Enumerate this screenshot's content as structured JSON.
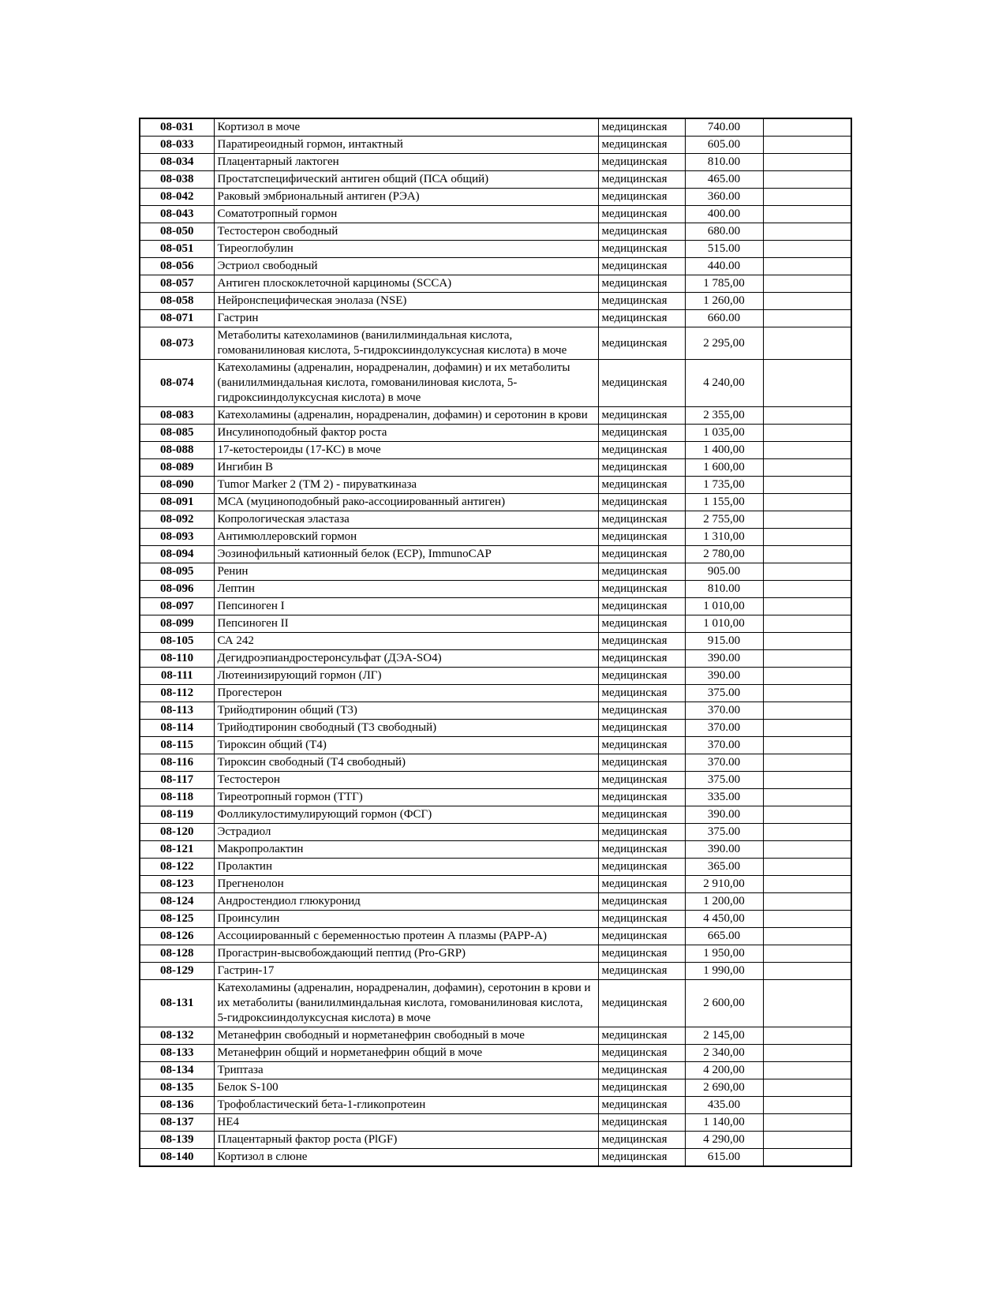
{
  "colors": {
    "background": "#ffffff",
    "text": "#000000",
    "border": "#000000"
  },
  "table": {
    "rows": [
      {
        "code": "08-031",
        "name": "Кортизол в моче",
        "category": "медицинская",
        "price": "740.00",
        "note": ""
      },
      {
        "code": "08-033",
        "name": "Паратиреоидный гормон, интактный",
        "category": "медицинская",
        "price": "605.00",
        "note": ""
      },
      {
        "code": "08-034",
        "name": "Плацентарный лактоген",
        "category": "медицинская",
        "price": "810.00",
        "note": ""
      },
      {
        "code": "08-038",
        "name": "Простатспецифический антиген общий (ПСА общий)",
        "category": "медицинская",
        "price": "465.00",
        "note": ""
      },
      {
        "code": "08-042",
        "name": "Раковый эмбриональный антиген (РЭА)",
        "category": "медицинская",
        "price": "360.00",
        "note": ""
      },
      {
        "code": "08-043",
        "name": "Соматотропный гормон",
        "category": "медицинская",
        "price": "400.00",
        "note": ""
      },
      {
        "code": "08-050",
        "name": "Тестостерон свободный",
        "category": "медицинская",
        "price": "680.00",
        "note": ""
      },
      {
        "code": "08-051",
        "name": "Тиреоглобулин",
        "category": "медицинская",
        "price": "515.00",
        "note": ""
      },
      {
        "code": "08-056",
        "name": "Эстриол свободный",
        "category": "медицинская",
        "price": "440.00",
        "note": ""
      },
      {
        "code": "08-057",
        "name": "Антиген плоскоклеточной карциномы (SCCA)",
        "category": "медицинская",
        "price": "1 785,00",
        "note": ""
      },
      {
        "code": "08-058",
        "name": "Нейронспецифическая энолаза (NSE)",
        "category": "медицинская",
        "price": "1 260,00",
        "note": ""
      },
      {
        "code": "08-071",
        "name": "Гастрин",
        "category": "медицинская",
        "price": "660.00",
        "note": ""
      },
      {
        "code": "08-073",
        "name": "Метаболиты катехоламинов (ванилилминдальная кислота, гомованилиновая кислота, 5-гидроксииндолуксусная кислота) в моче",
        "category": "медицинская",
        "price": "2 295,00",
        "note": ""
      },
      {
        "code": "08-074",
        "name": "Катехоламины (адреналин, норадреналин, дофамин) и их метаболиты (ванилилминдальная кислота, гомованилиновая кислота, 5-гидроксииндолуксусная кислота) в моче",
        "category": "медицинская",
        "price": "4 240,00",
        "note": ""
      },
      {
        "code": "08-083",
        "name": "Катехоламины (адреналин, норадреналин, дофамин) и серотонин в крови",
        "category": "медицинская",
        "price": "2 355,00",
        "note": ""
      },
      {
        "code": "08-085",
        "name": "Инсулиноподобный фактор роста",
        "category": "медицинская",
        "price": "1 035,00",
        "note": ""
      },
      {
        "code": "08-088",
        "name": "17-кетостероиды (17-КС) в моче",
        "category": "медицинская",
        "price": "1 400,00",
        "note": ""
      },
      {
        "code": "08-089",
        "name": "Ингибин В",
        "category": "медицинская",
        "price": "1 600,00",
        "note": ""
      },
      {
        "code": "08-090",
        "name": "Tumor Marker 2 (TM 2) - пируваткиназа",
        "category": "медицинская",
        "price": "1 735,00",
        "note": ""
      },
      {
        "code": "08-091",
        "name": "МСА (муциноподобный рако-ассоциированный антиген)",
        "category": "медицинская",
        "price": "1 155,00",
        "note": ""
      },
      {
        "code": "08-092",
        "name": "Копрологическая эластаза",
        "category": "медицинская",
        "price": "2 755,00",
        "note": ""
      },
      {
        "code": "08-093",
        "name": "Антимюллеровский гормон",
        "category": "медицинская",
        "price": "1 310,00",
        "note": ""
      },
      {
        "code": "08-094",
        "name": "Эозинофильный катионный белок (ECP), ImmunoCAP",
        "category": "медицинская",
        "price": "2 780,00",
        "note": ""
      },
      {
        "code": "08-095",
        "name": "Ренин",
        "category": "медицинская",
        "price": "905.00",
        "note": ""
      },
      {
        "code": "08-096",
        "name": "Лептин",
        "category": "медицинская",
        "price": "810.00",
        "note": ""
      },
      {
        "code": "08-097",
        "name": "Пепсиноген I",
        "category": "медицинская",
        "price": "1 010,00",
        "note": ""
      },
      {
        "code": "08-099",
        "name": "Пепсиноген II",
        "category": "медицинская",
        "price": "1 010,00",
        "note": ""
      },
      {
        "code": "08-105",
        "name": "СА 242",
        "category": "медицинская",
        "price": "915.00",
        "note": ""
      },
      {
        "code": "08-110",
        "name": "Дегидроэпиандростеронсульфат (ДЭА-SO4)",
        "category": "медицинская",
        "price": "390.00",
        "note": ""
      },
      {
        "code": "08-111",
        "name": "Лютеинизирующий гормон (ЛГ)",
        "category": "медицинская",
        "price": "390.00",
        "note": ""
      },
      {
        "code": "08-112",
        "name": "Прогестерон",
        "category": "медицинская",
        "price": "375.00",
        "note": ""
      },
      {
        "code": "08-113",
        "name": "Трийодтиронин общий (Т3)",
        "category": "медицинская",
        "price": "370.00",
        "note": ""
      },
      {
        "code": "08-114",
        "name": "Трийодтиронин свободный (Т3 свободный)",
        "category": "медицинская",
        "price": "370.00",
        "note": ""
      },
      {
        "code": "08-115",
        "name": "Тироксин общий (Т4)",
        "category": "медицинская",
        "price": "370.00",
        "note": ""
      },
      {
        "code": "08-116",
        "name": "Тироксин свободный (Т4 свободный)",
        "category": "медицинская",
        "price": "370.00",
        "note": ""
      },
      {
        "code": "08-117",
        "name": "Тестостерон",
        "category": "медицинская",
        "price": "375.00",
        "note": ""
      },
      {
        "code": "08-118",
        "name": "Тиреотропный гормон (ТТГ)",
        "category": "медицинская",
        "price": "335.00",
        "note": ""
      },
      {
        "code": "08-119",
        "name": "Фолликулостимулирующий гормон (ФСГ)",
        "category": "медицинская",
        "price": "390.00",
        "note": ""
      },
      {
        "code": "08-120",
        "name": "Эстрадиол",
        "category": "медицинская",
        "price": "375.00",
        "note": ""
      },
      {
        "code": "08-121",
        "name": "Макропролактин",
        "category": "медицинская",
        "price": "390.00",
        "note": ""
      },
      {
        "code": "08-122",
        "name": "Пролактин",
        "category": "медицинская",
        "price": "365.00",
        "note": ""
      },
      {
        "code": "08-123",
        "name": "Прегненолон",
        "category": "медицинская",
        "price": "2 910,00",
        "note": ""
      },
      {
        "code": "08-124",
        "name": "Андростендиол глюкуронид",
        "category": "медицинская",
        "price": "1 200,00",
        "note": ""
      },
      {
        "code": "08-125",
        "name": "Проинсулин",
        "category": "медицинская",
        "price": "4 450,00",
        "note": ""
      },
      {
        "code": "08-126",
        "name": "Ассоциированный с беременностью протеин А плазмы (PAPP-A)",
        "category": "медицинская",
        "price": "665.00",
        "note": ""
      },
      {
        "code": "08-128",
        "name": "Прогастрин-высвобождающий пептид (Pro-GRP)",
        "category": "медицинская",
        "price": "1 950,00",
        "note": ""
      },
      {
        "code": "08-129",
        "name": "Гастрин-17",
        "category": "медицинская",
        "price": "1 990,00",
        "note": ""
      },
      {
        "code": "08-131",
        "name": "Катехоламины (адреналин, норадреналин, дофамин), серотонин в крови и их метаболиты (ванилилминдальная кислота, гомованилиновая кислота, 5-гидроксииндолуксусная кислота) в моче",
        "category": "медицинская",
        "price": "2 600,00",
        "note": ""
      },
      {
        "code": "08-132",
        "name": "Метанефрин свободный и норметанефрин свободный в моче",
        "category": "медицинская",
        "price": "2 145,00",
        "note": ""
      },
      {
        "code": "08-133",
        "name": "Метанефрин общий и норметанефрин общий в моче",
        "category": "медицинская",
        "price": "2 340,00",
        "note": ""
      },
      {
        "code": "08-134",
        "name": "Триптаза",
        "category": "медицинская",
        "price": "4 200,00",
        "note": ""
      },
      {
        "code": "08-135",
        "name": "Белок S-100",
        "category": "медицинская",
        "price": "2 690,00",
        "note": ""
      },
      {
        "code": "08-136",
        "name": "Трофобластический бета-1-гликопротеин",
        "category": "медицинская",
        "price": "435.00",
        "note": ""
      },
      {
        "code": "08-137",
        "name": "HE4",
        "category": "медицинская",
        "price": "1 140,00",
        "note": ""
      },
      {
        "code": "08-139",
        "name": "Плацентарный фактор роста (PlGF)",
        "category": "медицинская",
        "price": "4 290,00",
        "note": ""
      },
      {
        "code": "08-140",
        "name": "Кортизол в слюне",
        "category": "медицинская",
        "price": "615.00",
        "note": ""
      }
    ]
  }
}
